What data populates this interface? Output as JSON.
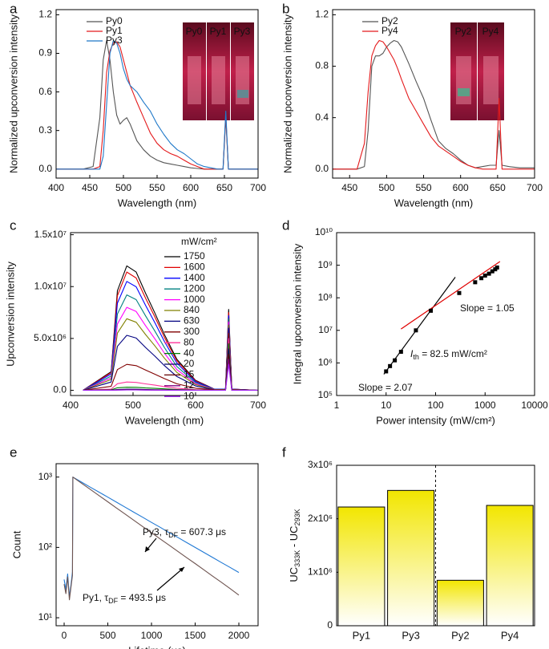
{
  "chart_data": [
    {
      "type": "line",
      "panel_label": "a",
      "x_label": "Wavelength (nm)",
      "y_label": "Normalized upconversion intensity",
      "xlim": [
        400,
        700
      ],
      "ylim": [
        -0.07,
        1.24
      ],
      "xticks": [
        400,
        450,
        500,
        550,
        600,
        650,
        700
      ],
      "yticks": [
        {
          "value": 0,
          "label": "0.0"
        },
        0.3,
        0.6,
        0.9,
        1.2
      ],
      "x": [
        400,
        420,
        440,
        455,
        465,
        470,
        475,
        480,
        485,
        490,
        495,
        500,
        505,
        510,
        520,
        530,
        540,
        550,
        560,
        570,
        580,
        590,
        600,
        610,
        620,
        630,
        640,
        648,
        652,
        656,
        665,
        680,
        700
      ],
      "series": [
        {
          "name": "Py0",
          "color": "#555555",
          "values": [
            0,
            0,
            0,
            0.02,
            0.4,
            0.85,
            1.0,
            0.85,
            0.6,
            0.42,
            0.35,
            0.38,
            0.4,
            0.35,
            0.22,
            0.15,
            0.1,
            0.07,
            0.05,
            0.04,
            0.03,
            0.02,
            0.01,
            0.005,
            0,
            0,
            0,
            0,
            0.4,
            0,
            0,
            0,
            0
          ]
        },
        {
          "name": "Py1",
          "color": "#e41a1c",
          "values": [
            0,
            0,
            0,
            0,
            0.02,
            0.3,
            0.75,
            0.92,
            0.98,
            0.99,
            0.95,
            0.85,
            0.75,
            0.65,
            0.52,
            0.4,
            0.28,
            0.2,
            0.15,
            0.12,
            0.1,
            0.07,
            0.04,
            0.02,
            0,
            0,
            0,
            0,
            0.42,
            0,
            0,
            0,
            0
          ]
        },
        {
          "name": "Py3",
          "color": "#1f78c8",
          "values": [
            0,
            0,
            0,
            0,
            0,
            0.1,
            0.5,
            0.9,
            1.0,
            0.98,
            0.9,
            0.78,
            0.7,
            0.65,
            0.6,
            0.52,
            0.45,
            0.35,
            0.27,
            0.2,
            0.15,
            0.12,
            0.08,
            0.04,
            0.02,
            0.01,
            0,
            0,
            0.45,
            0,
            0,
            0,
            0
          ]
        }
      ],
      "inset_labels": [
        "Py0",
        "Py1",
        "Py3"
      ]
    },
    {
      "type": "line",
      "panel_label": "b",
      "x_label": "Wavelength (nm)",
      "y_label": "Normalized upconversion intensity",
      "xlim": [
        427,
        700
      ],
      "ylim": [
        -0.07,
        1.24
      ],
      "xticks": [
        450,
        500,
        550,
        600,
        650,
        700
      ],
      "yticks": [
        {
          "value": 0,
          "label": "0.0"
        },
        0.4,
        0.8,
        1.2
      ],
      "x": [
        427,
        460,
        470,
        475,
        480,
        485,
        490,
        495,
        500,
        505,
        510,
        515,
        520,
        530,
        540,
        550,
        560,
        570,
        580,
        590,
        600,
        610,
        620,
        630,
        640,
        648,
        652,
        656,
        665,
        680,
        700
      ],
      "series": [
        {
          "name": "Py2",
          "color": "#555555",
          "values": [
            0,
            0,
            0.02,
            0.3,
            0.8,
            0.88,
            0.88,
            0.9,
            0.95,
            0.98,
            1.0,
            0.99,
            0.95,
            0.82,
            0.68,
            0.55,
            0.38,
            0.22,
            0.16,
            0.12,
            0.07,
            0.03,
            0.01,
            0.02,
            0.03,
            0.03,
            0.3,
            0.03,
            0.02,
            0.01,
            0.01
          ]
        },
        {
          "name": "Py4",
          "color": "#e41a1c",
          "values": [
            0,
            0,
            0.2,
            0.6,
            0.88,
            0.96,
            1.0,
            0.99,
            0.95,
            0.9,
            0.85,
            0.78,
            0.7,
            0.55,
            0.45,
            0.35,
            0.25,
            0.18,
            0.14,
            0.1,
            0.06,
            0.03,
            0.01,
            0,
            0,
            0,
            0.55,
            0,
            0,
            0,
            0
          ]
        }
      ],
      "inset_labels": [
        "Py2",
        "Py4"
      ]
    },
    {
      "type": "line",
      "panel_label": "c",
      "x_label": "Wavelength (nm)",
      "y_label": "Upconversion intensity",
      "xlim": [
        400,
        700
      ],
      "ylim": [
        -500000.0,
        15200000.0
      ],
      "xticks": [
        400,
        500,
        600,
        700
      ],
      "yticks": [
        {
          "value": 0,
          "label": "0.0"
        },
        {
          "value": 5000000.0,
          "label": "5.0x10⁶"
        },
        {
          "value": 10000000.0,
          "label": "1.0x10⁷"
        },
        {
          "value": 15000000.0,
          "label": "1.5x10⁷"
        }
      ],
      "legend_title": "mW/cm²",
      "x": [
        420,
        465,
        475,
        490,
        505,
        520,
        535,
        550,
        570,
        600,
        630,
        648,
        653,
        658,
        700
      ],
      "series": [
        {
          "name": "1750",
          "color": "#000000",
          "values": [
            0,
            1800000.0,
            9600000.0,
            12000000.0,
            11400000.0,
            9360000.0,
            7440000.0,
            5400000.0,
            3000000.0,
            960000.0,
            120000.0,
            120000.0,
            7800000.0,
            120000.0,
            0
          ]
        },
        {
          "name": "1600",
          "color": "#e00000",
          "values": [
            0,
            1710000.0,
            9120000.0,
            11400000.0,
            10830000.0,
            8890000.0,
            7070000.0,
            5130000.0,
            2850000.0,
            910000.0,
            110000.0,
            110000.0,
            7500000.0,
            110000.0,
            0
          ]
        },
        {
          "name": "1400",
          "color": "#0000ff",
          "values": [
            0,
            1580000.0,
            8400000.0,
            10500000.0,
            9980000.0,
            8190000.0,
            6510000.0,
            4730000.0,
            2630000.0,
            840000.0,
            110000.0,
            110000.0,
            7200000.0,
            110000.0,
            0
          ]
        },
        {
          "name": "1200",
          "color": "#008080",
          "values": [
            0,
            1380000.0,
            7360000.0,
            9200000.0,
            8740000.0,
            7180000.0,
            5700000.0,
            4140000.0,
            2300000.0,
            740000.0,
            90000.0,
            90000.0,
            6900000.0,
            90000.0,
            0
          ]
        },
        {
          "name": "1000",
          "color": "#ff00ff",
          "values": [
            0,
            1200000.0,
            6400000.0,
            8000000.0,
            7600000.0,
            6240000.0,
            4960000.0,
            3600000.0,
            2000000.0,
            640000.0,
            80000.0,
            80000.0,
            6600000.0,
            80000.0,
            0
          ]
        },
        {
          "name": "840",
          "color": "#808000",
          "values": [
            0,
            1040000.0,
            5520000.0,
            6900000.0,
            6560000.0,
            5380000.0,
            4280000.0,
            3110000.0,
            1730000.0,
            550000.0,
            70000.0,
            70000.0,
            6300000.0,
            70000.0,
            0
          ]
        },
        {
          "name": "630",
          "color": "#000080",
          "values": [
            0,
            800000.0,
            4240000.0,
            5300000.0,
            5040000.0,
            4130000.0,
            3290000.0,
            2390000.0,
            1330000.0,
            420000.0,
            50000.0,
            50000.0,
            6000000.0,
            50000.0,
            0
          ]
        },
        {
          "name": "300",
          "color": "#800000",
          "values": [
            0,
            380000.0,
            2000000.0,
            2500000.0,
            2380000.0,
            1950000.0,
            1550000.0,
            1130000.0,
            630000.0,
            200000.0,
            30000.0,
            30000.0,
            5500000.0,
            30000.0,
            0
          ]
        },
        {
          "name": "80",
          "color": "#ff3399",
          "values": [
            0,
            120000.0,
            640000.0,
            800000.0,
            760000.0,
            620000.0,
            500000.0,
            360000.0,
            200000.0,
            60000.0,
            10000.0,
            10000.0,
            5000000.0,
            10000.0,
            0
          ]
        },
        {
          "name": "40",
          "color": "#008000",
          "values": [
            0,
            50000.0,
            240000.0,
            300000.0,
            290000.0,
            230000.0,
            190000.0,
            140000.0,
            80000.0,
            20000.0,
            0,
            0,
            4500000.0,
            0,
            0
          ]
        },
        {
          "name": "20",
          "color": "#000066",
          "values": [
            0,
            20000.0,
            80000.0,
            100000.0,
            100000.0,
            80000.0,
            60000.0,
            50000.0,
            30000.0,
            10000.0,
            0,
            0,
            4000000.0,
            0,
            0
          ]
        },
        {
          "name": "15",
          "color": "#660000",
          "values": [
            0,
            10000.0,
            50000.0,
            60000.0,
            60000.0,
            50000.0,
            40000.0,
            30000.0,
            20000.0,
            0,
            0,
            0,
            3500000.0,
            0,
            0
          ]
        },
        {
          "name": "12",
          "color": "#800080",
          "values": [
            0,
            10000.0,
            30000.0,
            40000.0,
            40000.0,
            30000.0,
            20000.0,
            20000.0,
            10000.0,
            0,
            0,
            0,
            3000000.0,
            0,
            0
          ]
        },
        {
          "name": "10",
          "color": "#a020f0",
          "values": [
            0,
            0,
            20000.0,
            30000.0,
            30000.0,
            20000.0,
            20000.0,
            10000.0,
            10000.0,
            0,
            0,
            0,
            2500000.0,
            0,
            0
          ]
        }
      ]
    },
    {
      "type": "scatter",
      "panel_label": "d",
      "x_label": "Power intensity (mW/cm²)",
      "y_label": "Integral upconversion intensity",
      "log_x": true,
      "log_y": true,
      "xlim": [
        1,
        10000
      ],
      "ylim": [
        100000.0,
        10000000000.0
      ],
      "xticks": [
        1,
        10,
        100,
        1000,
        10000
      ],
      "yticks": [
        {
          "value": 100000.0,
          "label": "10⁵"
        },
        {
          "value": 1000000.0,
          "label": "10⁶"
        },
        {
          "value": 10000000.0,
          "label": "10⁷"
        },
        {
          "value": 100000000.0,
          "label": "10⁸"
        },
        {
          "value": 1000000000.0,
          "label": "10⁹"
        },
        {
          "value": 10000000000.0,
          "label": "10¹⁰"
        }
      ],
      "color": "#000000",
      "x": [
        10,
        12,
        15,
        20,
        40,
        80,
        300,
        630,
        840,
        1000,
        1200,
        1400,
        1600,
        1750
      ],
      "values": [
        550000.0,
        800000.0,
        1200000.0,
        2200000.0,
        10000000.0,
        40000000.0,
        140000000.0,
        300000000.0,
        400000000.0,
        480000000.0,
        550000000.0,
        650000000.0,
        750000000.0,
        850000000.0
      ],
      "fits": [
        {
          "color": "#000000",
          "x": [
            9,
            250
          ],
          "y": [
            450000.0,
            430000000.0
          ]
        },
        {
          "color": "#e00000",
          "x": [
            20,
            2000
          ],
          "y": [
            11000000.0,
            1300000000.0
          ]
        }
      ],
      "annotations": [
        {
          "color": "#000000",
          "parts": [
            {
              "text": "Slope = 2.07"
            }
          ]
        },
        {
          "color": "#e00000",
          "parts": [
            {
              "text": "Slope = 1.05"
            }
          ]
        },
        {
          "color": "#000000",
          "parts": [
            {
              "text": "I",
              "italic": true
            },
            {
              "text": "th",
              "sub": true
            },
            {
              "text": " = 82.5 mW/cm²"
            }
          ]
        }
      ]
    },
    {
      "type": "line",
      "panel_label": "e",
      "x_label": "Lifetime (μs)",
      "y_label": "Count",
      "log_y": true,
      "xlim": [
        -92,
        2220
      ],
      "ylim": [
        7.7,
        1550
      ],
      "xticks": [
        0,
        500,
        1000,
        1500,
        2000
      ],
      "yticks": [
        {
          "value": 10,
          "label": "10¹"
        },
        {
          "value": 100,
          "label": "10²"
        },
        {
          "value": 1000,
          "label": "10³"
        }
      ],
      "x": [
        0,
        20,
        40,
        60,
        80,
        95,
        100,
        200,
        300,
        400,
        500,
        600,
        700,
        800,
        900,
        1000,
        1100,
        1200,
        1300,
        1400,
        1500,
        1600,
        1700,
        1800,
        1900,
        2000
      ],
      "series": [
        {
          "color": "#1f78d4",
          "values": [
            35,
            25,
            42,
            20,
            30,
            45,
            1000,
            848,
            719,
            610,
            518,
            439,
            372,
            316,
            268,
            227,
            193,
            163,
            139,
            118,
            100,
            85,
            72,
            61,
            52,
            44
          ]
        },
        {
          "color": "#6e5450",
          "values": [
            30,
            22,
            38,
            18,
            28,
            40,
            1000,
            817,
            667,
            545,
            445,
            363,
            297,
            242,
            198,
            162,
            132,
            108,
            88,
            72,
            59,
            48,
            39,
            32,
            26,
            21
          ]
        }
      ],
      "annotations": [
        {
          "color": "#000000",
          "parts": [
            {
              "text": "Py3, τ"
            },
            {
              "text": "DF",
              "sub": true
            },
            {
              "text": " = 607.3 μs"
            }
          ]
        },
        {
          "color": "#000000",
          "parts": [
            {
              "text": "Py1, τ"
            },
            {
              "text": "DF",
              "sub": true
            },
            {
              "text": " = 493.5 μs"
            }
          ]
        }
      ]
    },
    {
      "type": "bar",
      "panel_label": "f",
      "y_label": [
        {
          "text": "UC"
        },
        {
          "text": "333K",
          "sub": true
        },
        {
          "text": " - UC"
        },
        {
          "text": "293K",
          "sub": true
        }
      ],
      "categories": [
        "Py1",
        "Py3",
        "Py2",
        "Py4"
      ],
      "values": [
        2220000.0,
        2530000.0,
        850000.0,
        2250000.0
      ],
      "color": "#f2e600",
      "ylim": [
        0,
        3000000.0
      ],
      "yticks": [
        0,
        {
          "value": 1000000.0,
          "label": "1x10⁶"
        },
        {
          "value": 2000000.0,
          "label": "2x10⁶"
        },
        {
          "value": 3000000.0,
          "label": "3x10⁶"
        }
      ]
    }
  ]
}
